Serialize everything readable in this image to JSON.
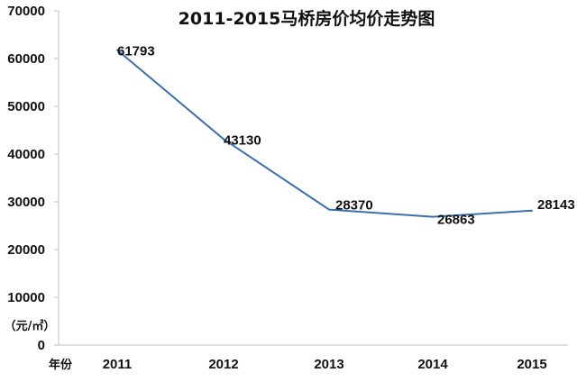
{
  "chart_data": {
    "type": "line",
    "title": "2011-2015马桥房价均价走势图",
    "xlabel": "年份",
    "ylabel": "（元/㎡）",
    "categories": [
      "2011",
      "2012",
      "2013",
      "2014",
      "2015"
    ],
    "series": [
      {
        "values": [
          61793,
          43130,
          28370,
          26863,
          28143
        ],
        "color": "#3a6fb0"
      }
    ],
    "data_labels": [
      "61793",
      "43130",
      "28370",
      "26863",
      "28143"
    ],
    "yticks": [
      "0",
      "10000",
      "20000",
      "30000",
      "40000",
      "50000",
      "60000",
      "70000"
    ],
    "ylim": [
      0,
      70000
    ],
    "grid": false,
    "legend": "none"
  }
}
